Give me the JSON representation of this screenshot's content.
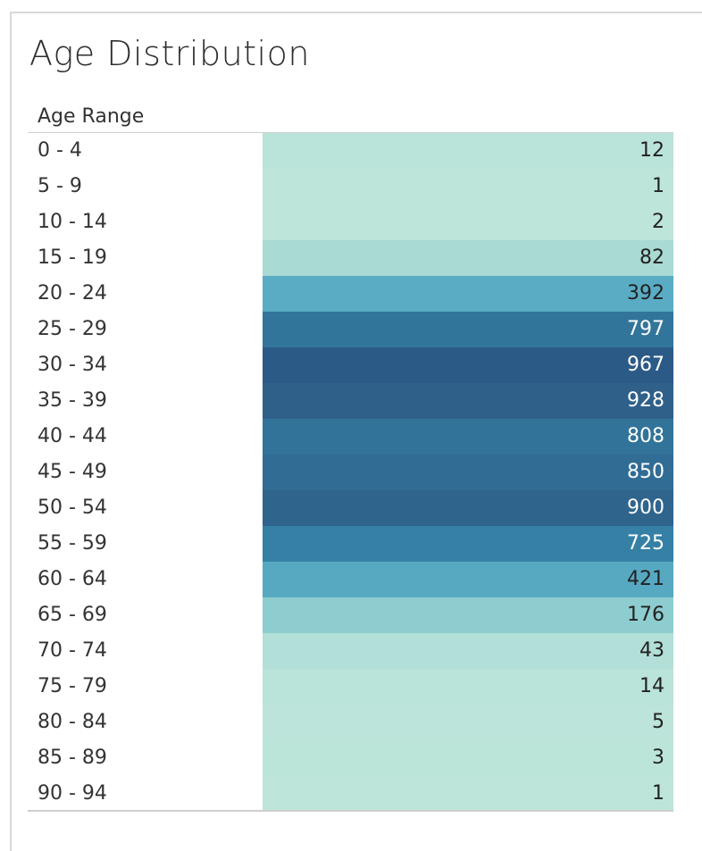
{
  "title": "Age Distribution",
  "column_header": "Age Range",
  "chart_data": {
    "type": "heatmap",
    "title": "Age Distribution",
    "row_header": "Age Range",
    "categories": [
      "0 - 4",
      "5 - 9",
      "10 - 14",
      "15 - 19",
      "20 - 24",
      "25 - 29",
      "30 - 34",
      "35 - 39",
      "40 - 44",
      "45 - 49",
      "50 - 54",
      "55 - 59",
      "60 - 64",
      "65 - 69",
      "70 - 74",
      "75 - 79",
      "80 - 84",
      "85 - 89",
      "90 - 94"
    ],
    "values": [
      12,
      1,
      2,
      82,
      392,
      797,
      967,
      928,
      808,
      850,
      900,
      725,
      421,
      176,
      43,
      14,
      5,
      3,
      1
    ],
    "color_scale": [
      "#bde5da",
      "#2c5a87"
    ]
  }
}
